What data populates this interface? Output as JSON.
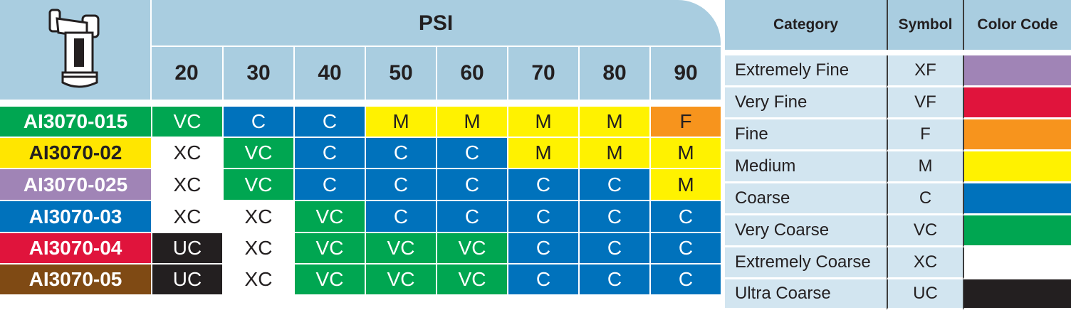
{
  "nozzle_table": {
    "header": "PSI",
    "pressures": [
      20,
      30,
      40,
      50,
      60,
      70,
      80,
      90
    ],
    "rows": [
      {
        "name": "AI3070-015",
        "color": "#00a651",
        "cells": [
          "VC",
          "C",
          "C",
          "M",
          "M",
          "M",
          "M",
          "F"
        ]
      },
      {
        "name": "AI3070-02",
        "color": "#ffe600",
        "cells": [
          "XC",
          "VC",
          "C",
          "C",
          "C",
          "M",
          "M",
          "M"
        ]
      },
      {
        "name": "AI3070-025",
        "color": "#a084b6",
        "cells": [
          "XC",
          "VC",
          "C",
          "C",
          "C",
          "C",
          "C",
          "M"
        ]
      },
      {
        "name": "AI3070-03",
        "color": "#0072bc",
        "cells": [
          "XC",
          "XC",
          "VC",
          "C",
          "C",
          "C",
          "C",
          "C"
        ]
      },
      {
        "name": "AI3070-04",
        "color": "#e0143c",
        "cells": [
          "UC",
          "XC",
          "VC",
          "VC",
          "VC",
          "C",
          "C",
          "C"
        ]
      },
      {
        "name": "AI3070-05",
        "color": "#7f4a14",
        "cells": [
          "UC",
          "XC",
          "VC",
          "VC",
          "VC",
          "C",
          "C",
          "C"
        ]
      }
    ]
  },
  "legend": {
    "headers": [
      "Category",
      "Symbol",
      "Color Code"
    ],
    "rows": [
      {
        "category": "Extremely Fine",
        "symbol": "XF",
        "color": "#a084b6"
      },
      {
        "category": "Very Fine",
        "symbol": "VF",
        "color": "#e0143c"
      },
      {
        "category": "Fine",
        "symbol": "F",
        "color": "#f7941d"
      },
      {
        "category": "Medium",
        "symbol": "M",
        "color": "#fff200"
      },
      {
        "category": "Coarse",
        "symbol": "C",
        "color": "#0072bc"
      },
      {
        "category": "Very Coarse",
        "symbol": "VC",
        "color": "#00a651"
      },
      {
        "category": "Extremely Coarse",
        "symbol": "XC",
        "color": "#ffffff"
      },
      {
        "category": "Ultra Coarse",
        "symbol": "UC",
        "color": "#231f20"
      }
    ]
  }
}
